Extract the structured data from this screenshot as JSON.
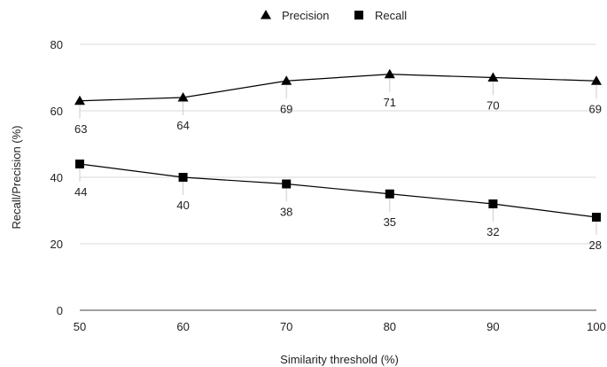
{
  "chart_data": {
    "type": "line",
    "xlabel": "Similarity threshold (%)",
    "ylabel": "Recall/Precision (%)",
    "x": [
      50,
      60,
      70,
      80,
      90,
      100
    ],
    "ylim": [
      0,
      80
    ],
    "yticks": [
      0,
      20,
      40,
      60,
      80
    ],
    "grid": "horizontal",
    "legend_position": "top-center",
    "series": [
      {
        "name": "Precision",
        "marker": "triangle",
        "color": "#000000",
        "values": [
          63,
          64,
          69,
          71,
          70,
          69
        ]
      },
      {
        "name": "Recall",
        "marker": "square",
        "color": "#000000",
        "values": [
          44,
          40,
          38,
          35,
          32,
          28
        ]
      }
    ]
  }
}
